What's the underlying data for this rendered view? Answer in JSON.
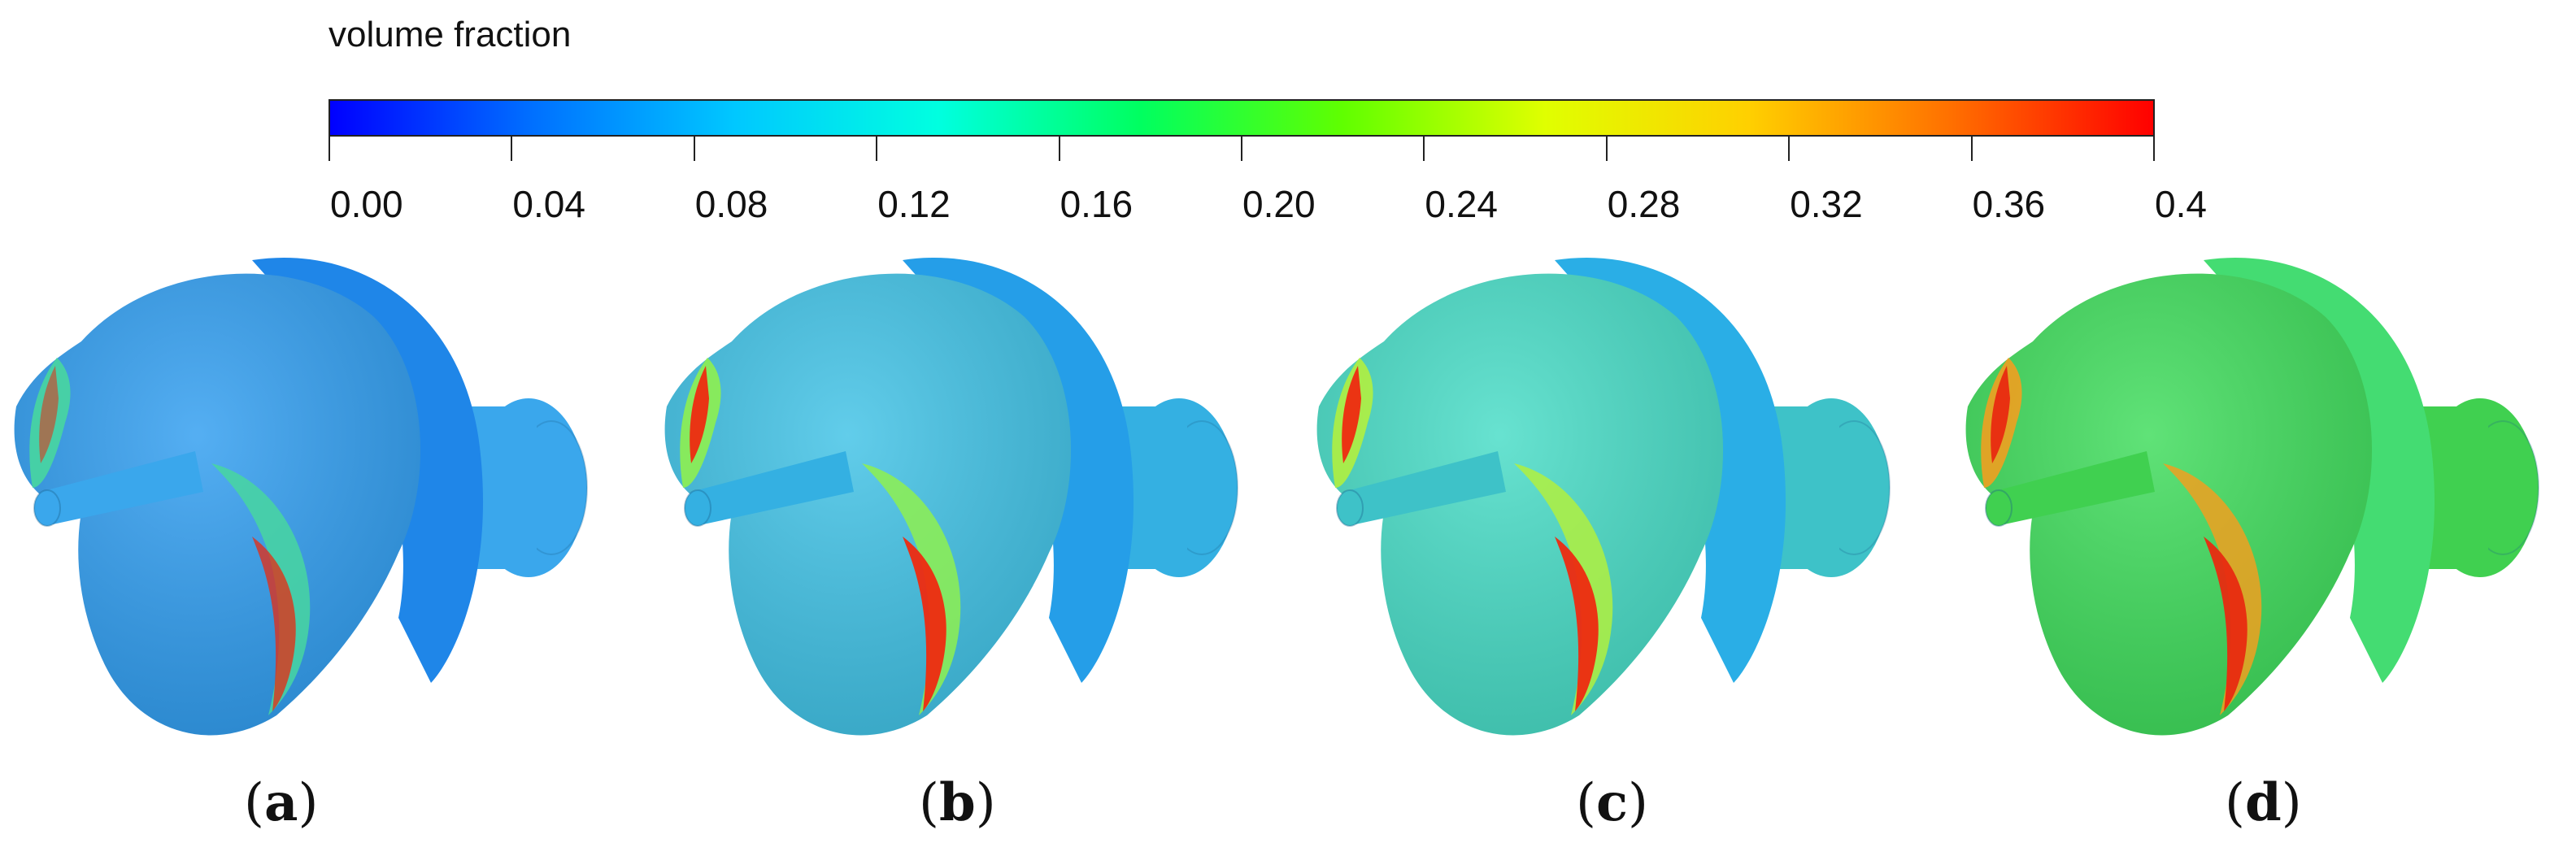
{
  "colorbar": {
    "title": "volume fraction",
    "min": 0.0,
    "max": 0.4,
    "ticks": [
      "0.00",
      "0.04",
      "0.08",
      "0.12",
      "0.16",
      "0.20",
      "0.24",
      "0.28",
      "0.32",
      "0.36",
      "0.4"
    ],
    "colormap": [
      "#0000ff",
      "#0070ff",
      "#00c8ff",
      "#00ffe0",
      "#00ff60",
      "#60ff00",
      "#e0ff00",
      "#ffd000",
      "#ff7000",
      "#ff0000"
    ]
  },
  "panels": [
    {
      "label": "a",
      "disk_color": "#2f9df0",
      "rear_color": "#1f86e8",
      "hub_color": "#3aa7ec",
      "cavity_color": "#e82a10",
      "edge_color": "#48d6a0"
    },
    {
      "label": "b",
      "disk_color": "#3fc2e6",
      "rear_color": "#259ee8",
      "hub_color": "#34b0e2",
      "cavity_color": "#ee2a10",
      "edge_color": "#8ef050"
    },
    {
      "label": "c",
      "disk_color": "#46dcc6",
      "rear_color": "#2aaee6",
      "hub_color": "#3ec2c8",
      "cavity_color": "#ee2a10",
      "edge_color": "#b0f040"
    },
    {
      "label": "d",
      "disk_color": "#3ddc5a",
      "rear_color": "#44dc72",
      "hub_color": "#40d050",
      "cavity_color": "#e82a10",
      "edge_color": "#f0a020"
    }
  ]
}
